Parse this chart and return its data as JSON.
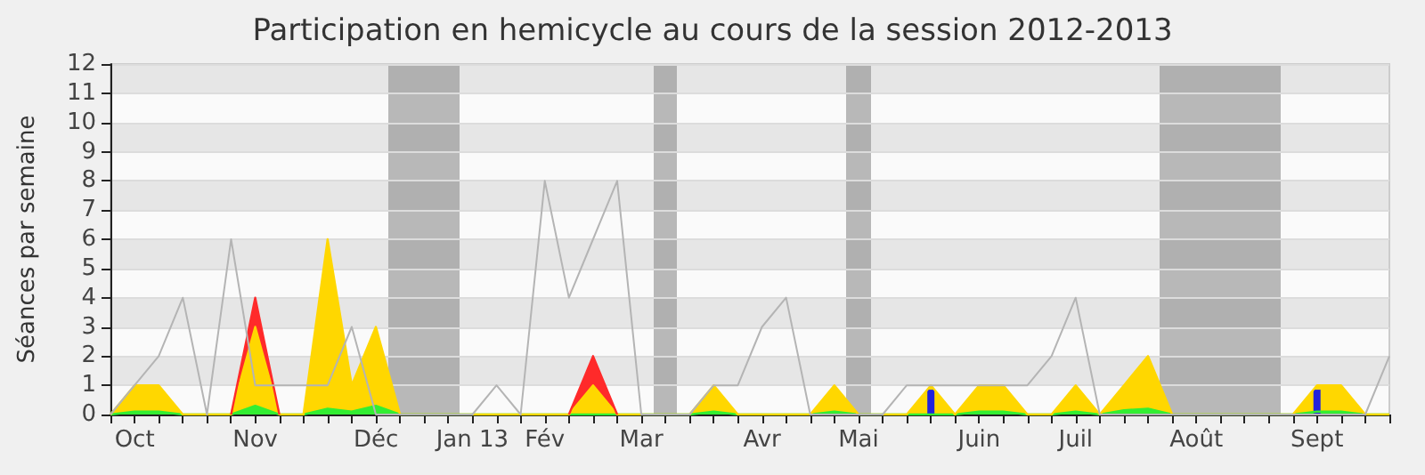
{
  "chart_data": {
    "type": "area",
    "title": "Participation en hemicycle au cours de la session 2012-2013",
    "ylabel": "Séances par semaine",
    "categories": [
      null,
      "Oct",
      null,
      null,
      null,
      null,
      "Nov",
      null,
      null,
      null,
      null,
      "Déc",
      null,
      null,
      null,
      "Jan 13",
      null,
      null,
      "Fév",
      null,
      null,
      null,
      "Mar",
      null,
      null,
      null,
      null,
      "Avr",
      null,
      null,
      null,
      "Mai",
      null,
      null,
      null,
      null,
      "Juin",
      null,
      null,
      null,
      "Juil",
      null,
      null,
      null,
      null,
      "Août",
      null,
      null,
      null,
      null,
      "Sept",
      null,
      null,
      null
    ],
    "ylim": [
      0,
      12
    ],
    "yticks": [
      0,
      1,
      2,
      3,
      4,
      5,
      6,
      7,
      8,
      9,
      10,
      11,
      12
    ],
    "grid": "y",
    "marker": "none",
    "stacked": true,
    "series": [
      {
        "color": "#33ee33",
        "values": [
          0,
          0.1,
          0.1,
          0,
          0,
          0,
          0.3,
          0,
          0,
          0.2,
          0.1,
          0.3,
          0,
          0,
          0,
          0,
          0,
          0,
          0,
          0,
          0,
          0,
          0,
          0,
          0,
          0.1,
          0,
          0,
          0,
          0,
          0.1,
          0,
          0,
          0,
          0,
          0,
          0.1,
          0.1,
          0,
          0,
          0.1,
          0,
          0.15,
          0.2,
          0,
          0,
          0,
          0,
          0,
          0,
          0.1,
          0.1,
          0,
          0
        ]
      },
      {
        "color": "#ffd700",
        "values": [
          0,
          0.9,
          0.9,
          0,
          0,
          0,
          2.7,
          0,
          0,
          5.8,
          0.9,
          2.7,
          0,
          0,
          0,
          0,
          0,
          0,
          0,
          0,
          1,
          0,
          0,
          0,
          0,
          0.9,
          0,
          0,
          0,
          0,
          0.9,
          0,
          0,
          0,
          1,
          0,
          0.9,
          0.9,
          0,
          0,
          0.9,
          0,
          0.85,
          1.8,
          0,
          0,
          0,
          0,
          0,
          0,
          0.9,
          0.9,
          0,
          0
        ]
      },
      {
        "color": "#ff2a2a",
        "values": [
          null,
          null,
          null,
          null,
          null,
          0,
          1,
          0,
          null,
          null,
          null,
          null,
          null,
          null,
          null,
          null,
          null,
          null,
          null,
          0,
          1,
          0,
          null,
          null,
          null,
          null,
          null,
          null,
          null,
          null,
          null,
          null,
          null,
          null,
          null,
          null,
          null,
          null,
          null,
          null,
          null,
          null,
          null,
          null,
          null,
          null,
          null,
          null,
          null,
          null,
          null,
          null,
          null,
          null
        ]
      },
      {
        "type": "bar",
        "color": "#2222dd",
        "values": [
          null,
          null,
          null,
          null,
          null,
          null,
          null,
          null,
          null,
          null,
          null,
          null,
          null,
          null,
          null,
          null,
          null,
          null,
          null,
          null,
          null,
          null,
          null,
          null,
          null,
          null,
          null,
          null,
          null,
          null,
          null,
          null,
          null,
          null,
          0.85,
          null,
          null,
          null,
          null,
          null,
          null,
          null,
          null,
          null,
          null,
          null,
          null,
          null,
          null,
          null,
          0.85,
          null,
          null,
          null
        ]
      },
      {
        "type": "line",
        "color": "#b4b4b4",
        "values": [
          0,
          1,
          2,
          4,
          0,
          6,
          1,
          1,
          1,
          1,
          3,
          0,
          0,
          0,
          0,
          0,
          1,
          0,
          8,
          4,
          6,
          8,
          0,
          0,
          0,
          1,
          1,
          3,
          4,
          0,
          0,
          0,
          0,
          1,
          1,
          1,
          1,
          1,
          1,
          2,
          4,
          0,
          0,
          0,
          0,
          0,
          0,
          0,
          0,
          0,
          0,
          0,
          0,
          2
        ]
      }
    ]
  }
}
